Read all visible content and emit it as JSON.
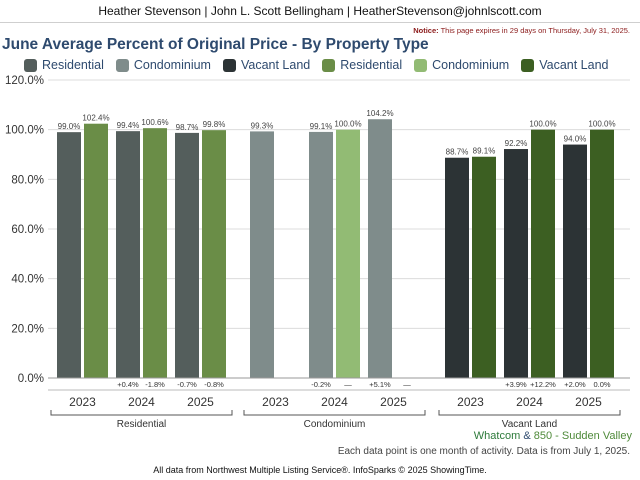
{
  "header": {
    "agent_line": "Heather Stevenson | John L. Scott Bellingham | HeatherStevenson@johnlscott.com",
    "notice_label": "Notice:",
    "notice_text": "This page expires in 29 days on Thursday, July 31, 2025."
  },
  "title": "June Average Percent of Original Price - By Property Type",
  "legend": [
    {
      "label": "Residential",
      "color": "#545e5c"
    },
    {
      "label": "Condominium",
      "color": "#7f8c8b"
    },
    {
      "label": "Vacant Land",
      "color": "#2c3335"
    },
    {
      "label": "Residential",
      "color": "#6a8d47"
    },
    {
      "label": "Condominium",
      "color": "#92bb74"
    },
    {
      "label": "Vacant Land",
      "color": "#3c5f22"
    }
  ],
  "footer": {
    "region1": "Whatcom",
    "amp": "&",
    "region2": "850 - Sudden Valley",
    "note": "Each data point is one month of activity. Data is from July 1, 2025.",
    "credit": "All data from Northwest Multiple Listing Service®. InfoSparks © 2025 ShowingTime."
  },
  "chart_data": {
    "type": "bar",
    "title": "June Average Percent of Original Price - By Property Type",
    "ylim": [
      0,
      120
    ],
    "yticks": [
      "0.0%",
      "20.0%",
      "40.0%",
      "60.0%",
      "80.0%",
      "100.0%",
      "120.0%"
    ],
    "grid": true,
    "legend_position": "top",
    "groups": [
      {
        "name": "Residential",
        "years": [
          {
            "year": "2023",
            "values": [
              99.0,
              102.4
            ],
            "labels": [
              "99.0%",
              "102.4%"
            ],
            "changes": [
              "",
              ""
            ]
          },
          {
            "year": "2024",
            "values": [
              99.4,
              100.6
            ],
            "labels": [
              "99.4%",
              "100.6%"
            ],
            "changes": [
              "+0.4%",
              "-1.8%"
            ]
          },
          {
            "year": "2025",
            "values": [
              98.7,
              99.8
            ],
            "labels": [
              "98.7%",
              "99.8%"
            ],
            "changes": [
              "-0.7%",
              "-0.8%"
            ]
          }
        ]
      },
      {
        "name": "Condominium",
        "years": [
          {
            "year": "2023",
            "values": [
              99.3,
              null
            ],
            "labels": [
              "99.3%",
              ""
            ],
            "changes": [
              "",
              ""
            ]
          },
          {
            "year": "2024",
            "values": [
              99.1,
              100.0
            ],
            "labels": [
              "99.1%",
              "100.0%"
            ],
            "changes": [
              "-0.2%",
              "—"
            ]
          },
          {
            "year": "2025",
            "values": [
              104.2,
              null
            ],
            "labels": [
              "104.2%",
              ""
            ],
            "changes": [
              "+5.1%",
              "—"
            ]
          }
        ]
      },
      {
        "name": "Vacant Land",
        "years": [
          {
            "year": "2023",
            "values": [
              88.7,
              89.1
            ],
            "labels": [
              "88.7%",
              "89.1%"
            ],
            "changes": [
              "",
              ""
            ]
          },
          {
            "year": "2024",
            "values": [
              92.2,
              100.0
            ],
            "labels": [
              "92.2%",
              "100.0%"
            ],
            "changes": [
              "+3.9%",
              "+12.2%"
            ]
          },
          {
            "year": "2025",
            "values": [
              94.0,
              100.0
            ],
            "labels": [
              "94.0%",
              "100.0%"
            ],
            "changes": [
              "+2.0%",
              "0.0%"
            ]
          }
        ]
      }
    ],
    "series_colors": [
      [
        "#545e5c",
        "#6a8d47"
      ],
      [
        "#7f8c8b",
        "#92bb74"
      ],
      [
        "#2c3335",
        "#3c5f22"
      ]
    ]
  }
}
